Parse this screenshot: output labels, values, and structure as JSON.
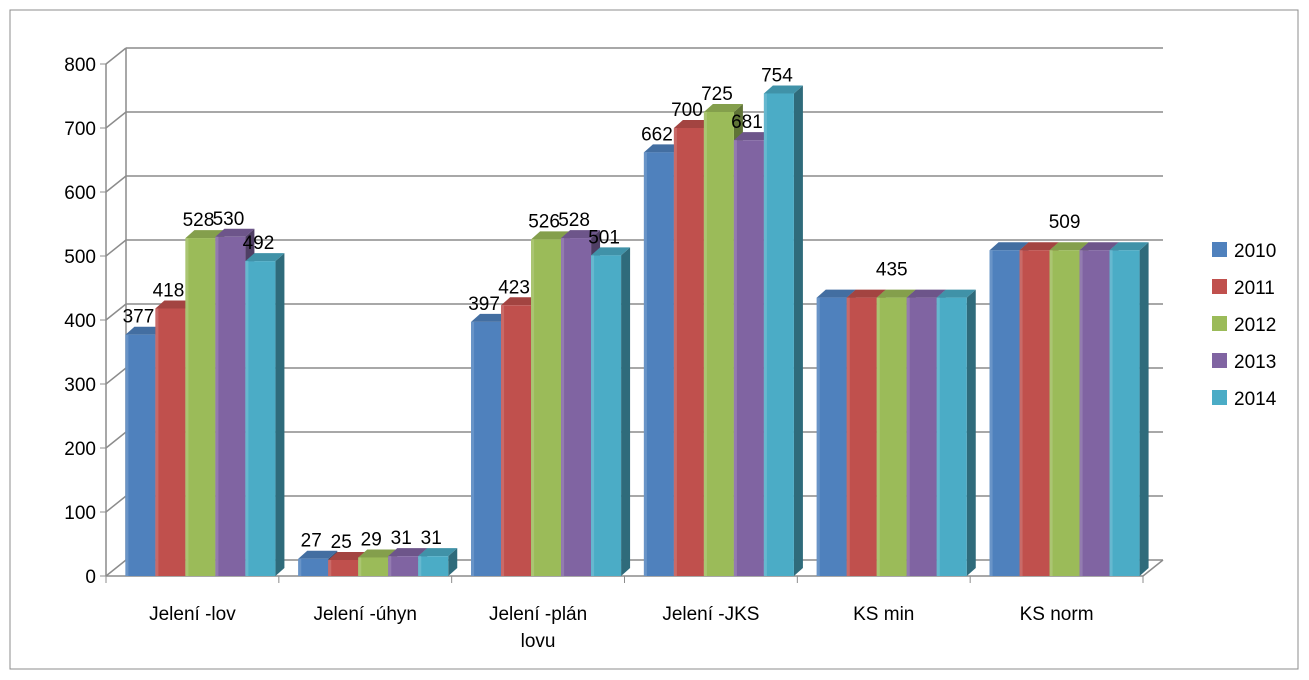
{
  "chart_data": {
    "type": "bar",
    "categories": [
      "Jelení -lov",
      "Jelení -úhyn",
      "Jelení -plán lovu",
      "Jelení -JKS",
      "KS min",
      "KS norm"
    ],
    "category_lines": [
      [
        "Jelení -lov"
      ],
      [
        "Jelení -úhyn"
      ],
      [
        "Jelení -plán",
        "lovu"
      ],
      [
        "Jelení -JKS"
      ],
      [
        "KS min"
      ],
      [
        "KS norm"
      ]
    ],
    "series": [
      {
        "name": "2010",
        "color": "#4F81BD",
        "values": [
          377,
          27,
          397,
          662,
          435,
          509
        ]
      },
      {
        "name": "2011",
        "color": "#C0504D",
        "values": [
          418,
          25,
          423,
          700,
          435,
          509
        ]
      },
      {
        "name": "2012",
        "color": "#9BBB59",
        "values": [
          528,
          29,
          526,
          725,
          435,
          509
        ]
      },
      {
        "name": "2013",
        "color": "#8064A2",
        "values": [
          530,
          31,
          528,
          681,
          435,
          509
        ]
      },
      {
        "name": "2014",
        "color": "#4BACC6",
        "values": [
          492,
          31,
          501,
          754,
          435,
          509
        ]
      }
    ],
    "data_labels": [
      [
        "377",
        "418",
        "528",
        "530",
        "492"
      ],
      [
        "27",
        "25",
        "29",
        "31",
        "31"
      ],
      [
        "397",
        "423",
        "526",
        "528",
        "501"
      ],
      [
        "662",
        "700",
        "725",
        "681",
        "754"
      ],
      [
        "",
        "",
        "435",
        "",
        ""
      ],
      [
        "",
        "",
        "509",
        "",
        ""
      ]
    ],
    "y_ticks": [
      "0",
      "100",
      "200",
      "300",
      "400",
      "500",
      "600",
      "700",
      "800"
    ],
    "ylim": [
      0,
      800
    ],
    "grid": true,
    "legend": "right",
    "title": "",
    "xlabel": "",
    "ylabel": ""
  }
}
